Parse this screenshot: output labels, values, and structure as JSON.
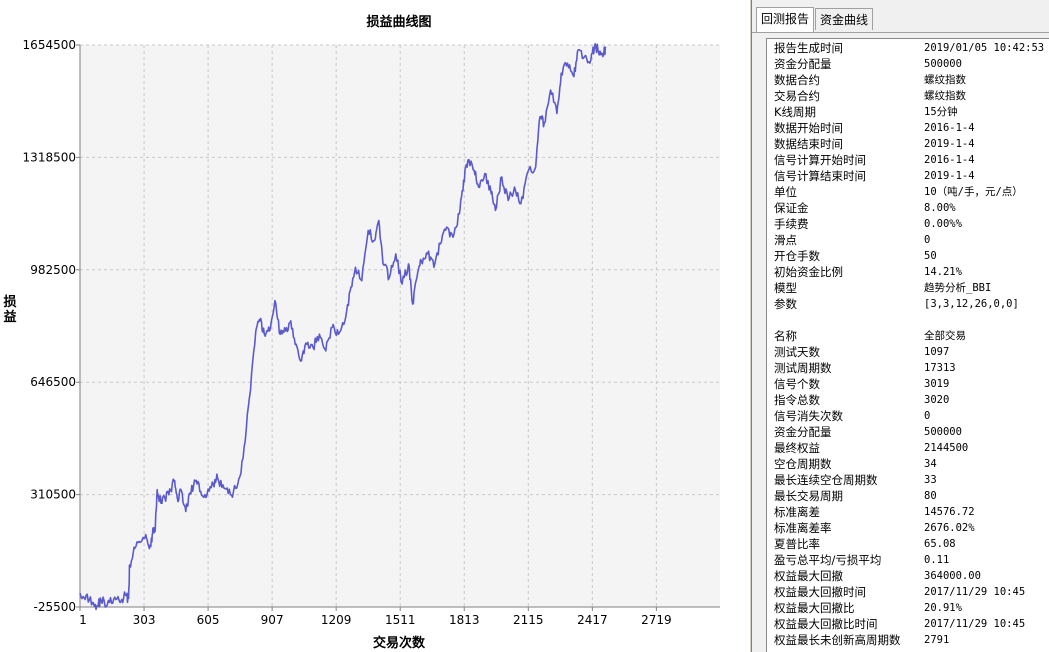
{
  "chart_data": {
    "type": "line",
    "title": "损益曲线图",
    "xlabel": "交易次数",
    "ylabel": "损益",
    "x_ticks": [
      1,
      303,
      605,
      907,
      1209,
      1511,
      1813,
      2115,
      2417,
      2719
    ],
    "y_ticks": [
      -25500,
      310500,
      646500,
      982500,
      1318500,
      1654500
    ],
    "xlim": [
      1,
      3019
    ],
    "ylim": [
      -25500,
      1654500
    ],
    "grid": true,
    "series": [
      {
        "color": "#5a5acd",
        "points": [
          [
            1,
            16000
          ],
          [
            30,
            9000
          ],
          [
            60,
            -12000
          ],
          [
            80,
            -23000
          ],
          [
            100,
            -5000
          ],
          [
            130,
            -18000
          ],
          [
            160,
            -2000
          ],
          [
            190,
            -12000
          ],
          [
            215,
            10000
          ],
          [
            230,
            0
          ],
          [
            235,
            100000
          ],
          [
            260,
            150000
          ],
          [
            290,
            170000
          ],
          [
            315,
            180000
          ],
          [
            335,
            155000
          ],
          [
            345,
            210000
          ],
          [
            355,
            200000
          ],
          [
            365,
            325000
          ],
          [
            375,
            290000
          ],
          [
            390,
            300000
          ],
          [
            420,
            310000
          ],
          [
            445,
            350000
          ],
          [
            460,
            300000
          ],
          [
            480,
            320000
          ],
          [
            500,
            260000
          ],
          [
            520,
            315000
          ],
          [
            545,
            350000
          ],
          [
            570,
            320000
          ],
          [
            600,
            310000
          ],
          [
            630,
            340000
          ],
          [
            650,
            360000
          ],
          [
            680,
            330000
          ],
          [
            710,
            310000
          ],
          [
            740,
            330000
          ],
          [
            770,
            420000
          ],
          [
            800,
            600000
          ],
          [
            830,
            800000
          ],
          [
            850,
            830000
          ],
          [
            870,
            790000
          ],
          [
            895,
            800000
          ],
          [
            920,
            890000
          ],
          [
            945,
            790000
          ],
          [
            970,
            800000
          ],
          [
            995,
            830000
          ],
          [
            1020,
            760000
          ],
          [
            1045,
            710000
          ],
          [
            1070,
            760000
          ],
          [
            1100,
            750000
          ],
          [
            1130,
            790000
          ],
          [
            1160,
            740000
          ],
          [
            1190,
            810000
          ],
          [
            1220,
            790000
          ],
          [
            1250,
            830000
          ],
          [
            1275,
            920000
          ],
          [
            1300,
            990000
          ],
          [
            1330,
            950000
          ],
          [
            1360,
            1100000
          ],
          [
            1390,
            1070000
          ],
          [
            1410,
            1130000
          ],
          [
            1430,
            1000000
          ],
          [
            1460,
            960000
          ],
          [
            1490,
            1030000
          ],
          [
            1520,
            940000
          ],
          [
            1550,
            1000000
          ],
          [
            1570,
            880000
          ],
          [
            1590,
            960000
          ],
          [
            1610,
            1010000
          ],
          [
            1640,
            1030000
          ],
          [
            1670,
            990000
          ],
          [
            1700,
            1060000
          ],
          [
            1730,
            1110000
          ],
          [
            1760,
            1080000
          ],
          [
            1790,
            1150000
          ],
          [
            1810,
            1250000
          ],
          [
            1830,
            1310000
          ],
          [
            1860,
            1280000
          ],
          [
            1880,
            1230000
          ],
          [
            1910,
            1270000
          ],
          [
            1940,
            1210000
          ],
          [
            1960,
            1160000
          ],
          [
            1990,
            1260000
          ],
          [
            2020,
            1190000
          ],
          [
            2050,
            1230000
          ],
          [
            2080,
            1180000
          ],
          [
            2110,
            1270000
          ],
          [
            2150,
            1290000
          ],
          [
            2170,
            1440000
          ],
          [
            2190,
            1420000
          ],
          [
            2220,
            1520000
          ],
          [
            2250,
            1450000
          ],
          [
            2270,
            1570000
          ],
          [
            2300,
            1600000
          ],
          [
            2330,
            1560000
          ],
          [
            2350,
            1640000
          ],
          [
            2380,
            1620000
          ],
          [
            2410,
            1610000
          ],
          [
            2430,
            1658000
          ],
          [
            2450,
            1625000
          ],
          [
            2470,
            1630000
          ],
          [
            2480,
            1644500
          ]
        ]
      }
    ]
  },
  "tabs": [
    {
      "label": "回测报告"
    },
    {
      "label": "资金曲线"
    }
  ],
  "report": [
    {
      "k": "报告生成时间",
      "v": "2019/01/05 10:42:53"
    },
    {
      "k": "资金分配量",
      "v": "500000"
    },
    {
      "k": "数据合约",
      "v": "螺纹指数"
    },
    {
      "k": "交易合约",
      "v": "螺纹指数"
    },
    {
      "k": "K线周期",
      "v": "15分钟"
    },
    {
      "k": "数据开始时间",
      "v": "2016-1-4"
    },
    {
      "k": "数据结束时间",
      "v": "2019-1-4"
    },
    {
      "k": "信号计算开始时间",
      "v": "2016-1-4"
    },
    {
      "k": "信号计算结束时间",
      "v": "2019-1-4"
    },
    {
      "k": "单位",
      "v": "10（吨/手，元/点）"
    },
    {
      "k": "保证金",
      "v": "8.00%"
    },
    {
      "k": "手续费",
      "v": "0.00%%"
    },
    {
      "k": "滑点",
      "v": "0"
    },
    {
      "k": "开仓手数",
      "v": "50"
    },
    {
      "k": "初始资金比例",
      "v": "14.21%"
    },
    {
      "k": "模型",
      "v": "趋势分析_BBI"
    },
    {
      "k": "参数",
      "v": "[3,3,12,26,0,0]"
    },
    {
      "k": "",
      "v": ""
    },
    {
      "k": "名称",
      "v": "全部交易"
    },
    {
      "k": "测试天数",
      "v": "1097"
    },
    {
      "k": "测试周期数",
      "v": "17313"
    },
    {
      "k": "信号个数",
      "v": "3019"
    },
    {
      "k": "指令总数",
      "v": "3020"
    },
    {
      "k": "信号消失次数",
      "v": "0"
    },
    {
      "k": "资金分配量",
      "v": "500000"
    },
    {
      "k": "最终权益",
      "v": "2144500"
    },
    {
      "k": "空仓周期数",
      "v": "34"
    },
    {
      "k": "最长连续空仓周期数",
      "v": "33"
    },
    {
      "k": "最长交易周期",
      "v": "80"
    },
    {
      "k": "标准离差",
      "v": "14576.72"
    },
    {
      "k": "标准离差率",
      "v": "2676.02%"
    },
    {
      "k": "夏普比率",
      "v": "65.08"
    },
    {
      "k": "盈亏总平均/亏损平均",
      "v": "0.11"
    },
    {
      "k": "权益最大回撤",
      "v": "364000.00"
    },
    {
      "k": "权益最大回撤时间",
      "v": "2017/11/29 10:45"
    },
    {
      "k": "权益最大回撤比",
      "v": "20.91%"
    },
    {
      "k": "权益最大回撤比时间",
      "v": "2017/11/29 10:45"
    },
    {
      "k": "权益最长未创新高周期数",
      "v": "2791"
    }
  ]
}
